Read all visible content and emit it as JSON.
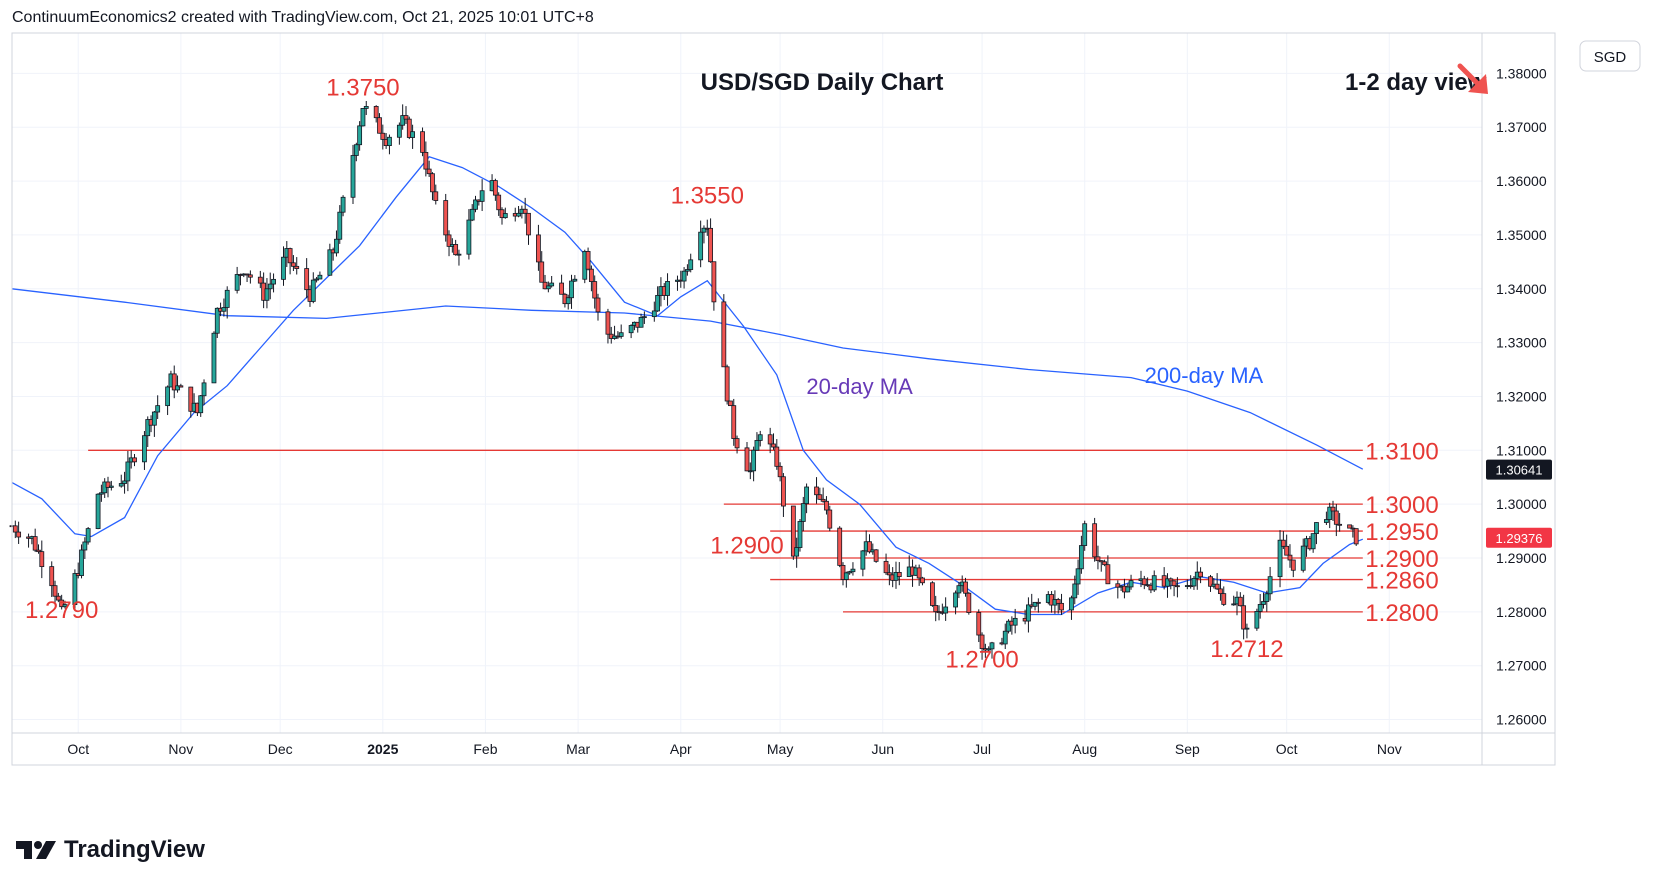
{
  "header": {
    "attribution": "ContinuumEconomics2 created with TradingView.com, Oct 21, 2025 10:01 UTC+8"
  },
  "footer": {
    "brand": "TradingView"
  },
  "colors": {
    "up": "#26a69a",
    "down": "#ef5350",
    "level": "#e53935",
    "ma": "#2962ff",
    "ma_label": "#673ab7",
    "text": "#131722"
  },
  "chart_data": {
    "type": "candlestick",
    "title": "USD/SGD Daily Chart",
    "view_label": "1-2 day view",
    "view_icon": "arrow-down-right-icon",
    "currency": "SGD",
    "ylim": [
      1.2575,
      1.3875
    ],
    "y_ticks": [
      "1.38000",
      "1.37000",
      "1.36000",
      "1.35000",
      "1.34000",
      "1.33000",
      "1.32000",
      "1.31000",
      "1.30000",
      "1.29000",
      "1.28000",
      "1.27000",
      "1.26000"
    ],
    "x_ticks": [
      {
        "label": "Oct",
        "date": "2024-10-01"
      },
      {
        "label": "Nov",
        "date": "2024-11-01"
      },
      {
        "label": "Dec",
        "date": "2024-12-01"
      },
      {
        "label": "2025",
        "date": "2025-01-01",
        "bold": true
      },
      {
        "label": "Feb",
        "date": "2025-02-01"
      },
      {
        "label": "Mar",
        "date": "2025-03-01"
      },
      {
        "label": "Apr",
        "date": "2025-04-01"
      },
      {
        "label": "May",
        "date": "2025-05-01"
      },
      {
        "label": "Jun",
        "date": "2025-06-01"
      },
      {
        "label": "Jul",
        "date": "2025-07-01"
      },
      {
        "label": "Aug",
        "date": "2025-08-01"
      },
      {
        "label": "Sep",
        "date": "2025-09-01"
      },
      {
        "label": "Oct",
        "date": "2025-10-01"
      },
      {
        "label": "Nov",
        "date": "2025-11-01"
      }
    ],
    "x_range": [
      "2024-09-11",
      "2025-11-29"
    ],
    "price_labels": [
      {
        "label": "1.30641",
        "value": 1.30641,
        "style": "dark"
      },
      {
        "label": "1.29376",
        "value": 1.29376,
        "style": "red"
      }
    ],
    "levels": [
      {
        "label": "1.3100",
        "value": 1.31,
        "start": "2024-10-04",
        "end": "2025-10-24"
      },
      {
        "label": "1.3000",
        "value": 1.3,
        "start": "2025-04-14",
        "end": "2025-10-24"
      },
      {
        "label": "1.2950",
        "value": 1.295,
        "start": "2025-04-28",
        "end": "2025-10-24"
      },
      {
        "label": "1.2900",
        "value": 1.29,
        "start": "2025-04-22",
        "end": "2025-10-24"
      },
      {
        "label": "1.2860",
        "value": 1.286,
        "start": "2025-04-28",
        "end": "2025-10-24"
      },
      {
        "label": "1.2800",
        "value": 1.28,
        "start": "2025-05-20",
        "end": "2025-10-24"
      }
    ],
    "annotations": [
      {
        "label": "1.3750",
        "date": "2024-12-26",
        "value": 1.3755
      },
      {
        "label": "1.3550",
        "date": "2025-04-09",
        "value": 1.3555
      },
      {
        "label": "1.2790",
        "date": "2024-09-26",
        "value": 1.2785
      },
      {
        "label": "1.2900",
        "date": "2025-04-21",
        "value": 1.2905
      },
      {
        "label": "1.2700",
        "date": "2025-07-01",
        "value": 1.2693
      },
      {
        "label": "1.2712",
        "date": "2025-09-19",
        "value": 1.2712
      }
    ],
    "ma_labels": [
      {
        "label": "20-day MA",
        "date": "2025-05-25",
        "value": 1.3205
      },
      {
        "label": "200-day MA",
        "date": "2025-09-06",
        "value": 1.3225
      }
    ],
    "ma200": [
      [
        "2024-09-11",
        1.34
      ],
      [
        "2024-10-15",
        1.3375
      ],
      [
        "2024-11-15",
        1.335
      ],
      [
        "2024-12-15",
        1.3345
      ],
      [
        "2025-01-20",
        1.3368
      ],
      [
        "2025-02-15",
        1.336
      ],
      [
        "2025-03-15",
        1.3355
      ],
      [
        "2025-04-10",
        1.334
      ],
      [
        "2025-05-01",
        1.3315
      ],
      [
        "2025-05-20",
        1.329
      ],
      [
        "2025-06-15",
        1.327
      ],
      [
        "2025-07-15",
        1.325
      ],
      [
        "2025-08-15",
        1.3235
      ],
      [
        "2025-09-01",
        1.321
      ],
      [
        "2025-09-20",
        1.317
      ],
      [
        "2025-10-10",
        1.311
      ],
      [
        "2025-10-24",
        1.3065
      ]
    ],
    "ma20": [
      [
        "2024-09-11",
        1.304
      ],
      [
        "2024-09-20",
        1.301
      ],
      [
        "2024-09-30",
        1.2945
      ],
      [
        "2024-10-05",
        1.294
      ],
      [
        "2024-10-15",
        1.2975
      ],
      [
        "2024-10-25",
        1.309
      ],
      [
        "2024-11-05",
        1.317
      ],
      [
        "2024-11-15",
        1.322
      ],
      [
        "2024-11-25",
        1.329
      ],
      [
        "2024-12-05",
        1.336
      ],
      [
        "2024-12-15",
        1.342
      ],
      [
        "2024-12-25",
        1.348
      ],
      [
        "2025-01-05",
        1.357
      ],
      [
        "2025-01-15",
        1.3645
      ],
      [
        "2025-01-25",
        1.3625
      ],
      [
        "2025-02-05",
        1.359
      ],
      [
        "2025-02-15",
        1.355
      ],
      [
        "2025-02-25",
        1.3505
      ],
      [
        "2025-03-05",
        1.345
      ],
      [
        "2025-03-15",
        1.3375
      ],
      [
        "2025-03-25",
        1.335
      ],
      [
        "2025-04-01",
        1.3385
      ],
      [
        "2025-04-09",
        1.3415
      ],
      [
        "2025-04-20",
        1.333
      ],
      [
        "2025-04-30",
        1.324
      ],
      [
        "2025-05-08",
        1.31
      ],
      [
        "2025-05-15",
        1.3045
      ],
      [
        "2025-05-25",
        1.3
      ],
      [
        "2025-06-05",
        1.292
      ],
      [
        "2025-06-15",
        1.289
      ],
      [
        "2025-06-25",
        1.285
      ],
      [
        "2025-07-05",
        1.2805
      ],
      [
        "2025-07-15",
        1.2795
      ],
      [
        "2025-07-25",
        1.2795
      ],
      [
        "2025-08-05",
        1.2835
      ],
      [
        "2025-08-15",
        1.2855
      ],
      [
        "2025-08-25",
        1.2845
      ],
      [
        "2025-09-05",
        1.2865
      ],
      [
        "2025-09-15",
        1.2855
      ],
      [
        "2025-09-25",
        1.2835
      ],
      [
        "2025-10-05",
        1.2845
      ],
      [
        "2025-10-12",
        1.289
      ],
      [
        "2025-10-20",
        1.2925
      ],
      [
        "2025-10-24",
        1.2935
      ]
    ],
    "path": [
      [
        "2024-09-11",
        1.296
      ],
      [
        "2024-09-17",
        1.2935
      ],
      [
        "2024-09-23",
        1.286
      ],
      [
        "2024-09-26",
        1.2795
      ],
      [
        "2024-10-01",
        1.288
      ],
      [
        "2024-10-07",
        1.302
      ],
      [
        "2024-10-15",
        1.305
      ],
      [
        "2024-10-22",
        1.315
      ],
      [
        "2024-10-29",
        1.323
      ],
      [
        "2024-11-06",
        1.317
      ],
      [
        "2024-11-12",
        1.336
      ],
      [
        "2024-11-20",
        1.344
      ],
      [
        "2024-11-26",
        1.339
      ],
      [
        "2024-12-03",
        1.346
      ],
      [
        "2024-12-10",
        1.339
      ],
      [
        "2024-12-17",
        1.347
      ],
      [
        "2024-12-22",
        1.362
      ],
      [
        "2024-12-26",
        1.374
      ],
      [
        "2025-01-02",
        1.368
      ],
      [
        "2025-01-07",
        1.371
      ],
      [
        "2025-01-13",
        1.366
      ],
      [
        "2025-01-17",
        1.355
      ],
      [
        "2025-01-23",
        1.346
      ],
      [
        "2025-01-27",
        1.352
      ],
      [
        "2025-02-02",
        1.362
      ],
      [
        "2025-02-06",
        1.353
      ],
      [
        "2025-02-12",
        1.356
      ],
      [
        "2025-02-18",
        1.341
      ],
      [
        "2025-02-25",
        1.338
      ],
      [
        "2025-03-03",
        1.348
      ],
      [
        "2025-03-08",
        1.332
      ],
      [
        "2025-03-14",
        1.331
      ],
      [
        "2025-03-20",
        1.334
      ],
      [
        "2025-03-26",
        1.339
      ],
      [
        "2025-04-02",
        1.343
      ],
      [
        "2025-04-07",
        1.352
      ],
      [
        "2025-04-09",
        1.352
      ],
      [
        "2025-04-12",
        1.332
      ],
      [
        "2025-04-17",
        1.313
      ],
      [
        "2025-04-22",
        1.306
      ],
      [
        "2025-04-25",
        1.314
      ],
      [
        "2025-04-30",
        1.308
      ],
      [
        "2025-05-05",
        1.289
      ],
      [
        "2025-05-09",
        1.303
      ],
      [
        "2025-05-15",
        1.299
      ],
      [
        "2025-05-20",
        1.287
      ],
      [
        "2025-05-27",
        1.292
      ],
      [
        "2025-06-03",
        1.286
      ],
      [
        "2025-06-10",
        1.288
      ],
      [
        "2025-06-17",
        1.279
      ],
      [
        "2025-06-24",
        1.286
      ],
      [
        "2025-06-30",
        1.276
      ],
      [
        "2025-07-03",
        1.272
      ],
      [
        "2025-07-09",
        1.277
      ],
      [
        "2025-07-15",
        1.28
      ],
      [
        "2025-07-21",
        1.283
      ],
      [
        "2025-07-27",
        1.279
      ],
      [
        "2025-08-01",
        1.296
      ],
      [
        "2025-08-06",
        1.288
      ],
      [
        "2025-08-12",
        1.284
      ],
      [
        "2025-08-18",
        1.286
      ],
      [
        "2025-08-24",
        1.285
      ],
      [
        "2025-08-30",
        1.284
      ],
      [
        "2025-09-05",
        1.288
      ],
      [
        "2025-09-11",
        1.283
      ],
      [
        "2025-09-16",
        1.282
      ],
      [
        "2025-09-19",
        1.276
      ],
      [
        "2025-09-24",
        1.283
      ],
      [
        "2025-09-29",
        1.292
      ],
      [
        "2025-10-03",
        1.289
      ],
      [
        "2025-10-08",
        1.293
      ],
      [
        "2025-10-12",
        1.299
      ],
      [
        "2025-10-16",
        1.297
      ],
      [
        "2025-10-20",
        1.2945
      ],
      [
        "2025-10-22",
        1.2938
      ]
    ]
  }
}
